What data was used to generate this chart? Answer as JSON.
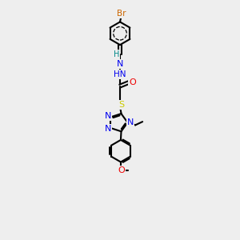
{
  "bg_color": "#eeeeee",
  "bond_color": "#000000",
  "colors": {
    "Br": "#cc6600",
    "N": "#0000ee",
    "O": "#ee0000",
    "S": "#cccc00",
    "H": "#008888",
    "C": "#000000"
  },
  "figsize": [
    3.0,
    3.0
  ],
  "dpi": 100
}
